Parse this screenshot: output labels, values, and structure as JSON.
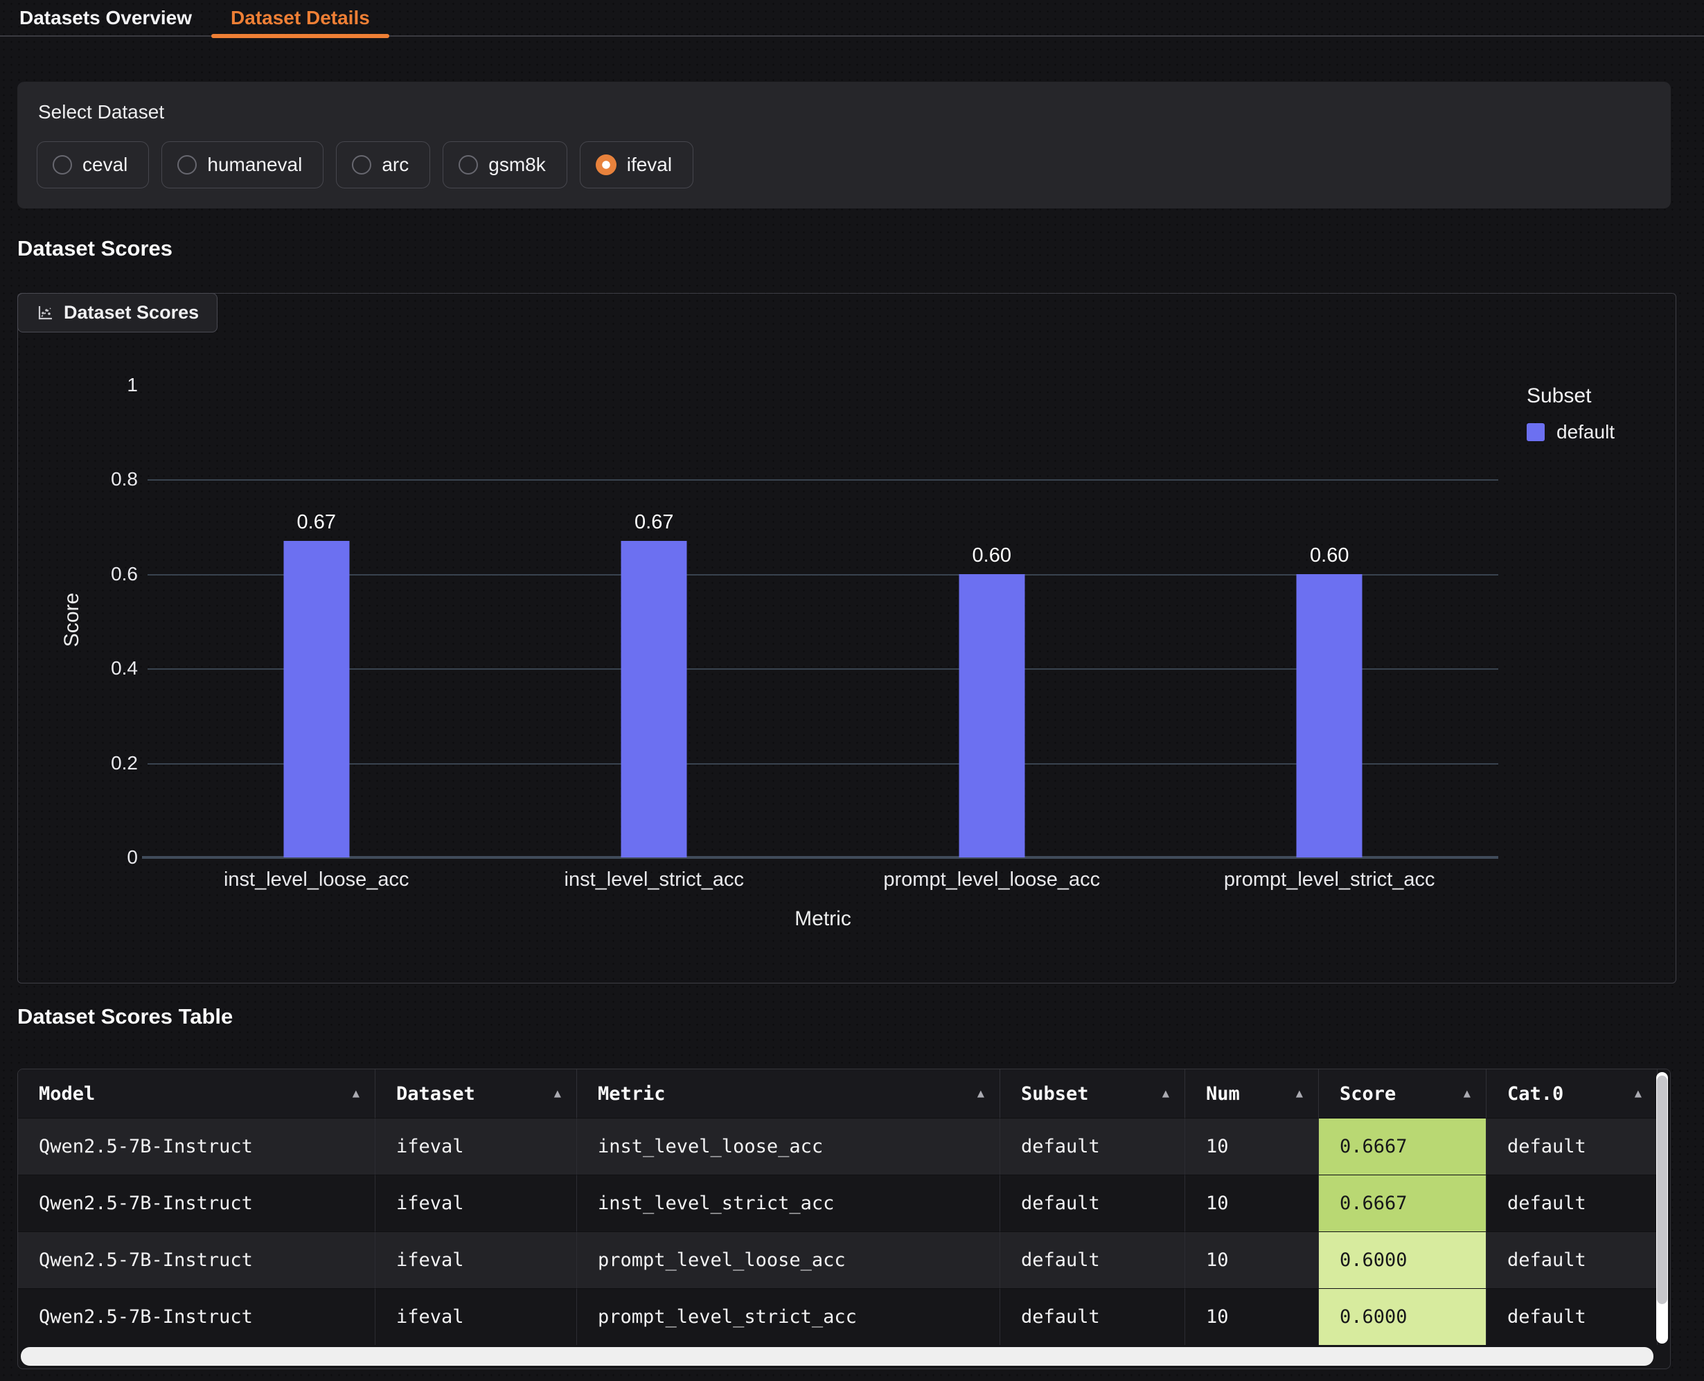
{
  "tabs": {
    "overview": "Datasets Overview",
    "details": "Dataset Details"
  },
  "select_dataset": {
    "label": "Select Dataset",
    "options": [
      {
        "label": "ceval",
        "selected": false
      },
      {
        "label": "humaneval",
        "selected": false
      },
      {
        "label": "arc",
        "selected": false
      },
      {
        "label": "gsm8k",
        "selected": false
      },
      {
        "label": "ifeval",
        "selected": true
      }
    ]
  },
  "scores_section": {
    "heading": "Dataset Scores",
    "panel_tab": "Dataset Scores"
  },
  "chart_data": {
    "type": "bar",
    "categories": [
      "inst_level_loose_acc",
      "inst_level_strict_acc",
      "prompt_level_loose_acc",
      "prompt_level_strict_acc"
    ],
    "values": [
      0.67,
      0.67,
      0.6,
      0.6
    ],
    "bar_labels": [
      "0.67",
      "0.67",
      "0.60",
      "0.60"
    ],
    "xlabel": "Metric",
    "ylabel": "Score",
    "ylim": [
      0,
      1
    ],
    "ytick_values": [
      1,
      0.8,
      0.6,
      0.4,
      0.2,
      0
    ],
    "ytick_labels": [
      "1",
      "0.8",
      "0.6",
      "0.4",
      "0.2",
      "0"
    ],
    "grid": true,
    "bar_color": "#6c70f1",
    "legend": {
      "title": "Subset",
      "position": "right",
      "entries": [
        {
          "label": "default",
          "color": "#6c70f1"
        }
      ]
    }
  },
  "table_section": {
    "heading": "Dataset Scores Table",
    "sort_icon": "▲",
    "columns": [
      "Model",
      "Dataset",
      "Metric",
      "Subset",
      "Num",
      "Score",
      "Cat.0"
    ],
    "rows": [
      {
        "model": "Qwen2.5-7B-Instruct",
        "dataset": "ifeval",
        "metric": "inst_level_loose_acc",
        "subset": "default",
        "num": "10",
        "score": "0.6667",
        "cat0": "default"
      },
      {
        "model": "Qwen2.5-7B-Instruct",
        "dataset": "ifeval",
        "metric": "inst_level_strict_acc",
        "subset": "default",
        "num": "10",
        "score": "0.6667",
        "cat0": "default"
      },
      {
        "model": "Qwen2.5-7B-Instruct",
        "dataset": "ifeval",
        "metric": "prompt_level_loose_acc",
        "subset": "default",
        "num": "10",
        "score": "0.6000",
        "cat0": "default"
      },
      {
        "model": "Qwen2.5-7B-Instruct",
        "dataset": "ifeval",
        "metric": "prompt_level_strict_acc",
        "subset": "default",
        "num": "10",
        "score": "0.6000",
        "cat0": "default"
      }
    ],
    "score_colors": [
      "#b9d873",
      "#b9d873",
      "#d7eb9e",
      "#d7eb9e"
    ]
  },
  "colors": {
    "accent_orange": "#ee7f35",
    "bar_blue": "#6c70f1",
    "score_high": "#b9d873",
    "score_low": "#d7eb9e"
  }
}
